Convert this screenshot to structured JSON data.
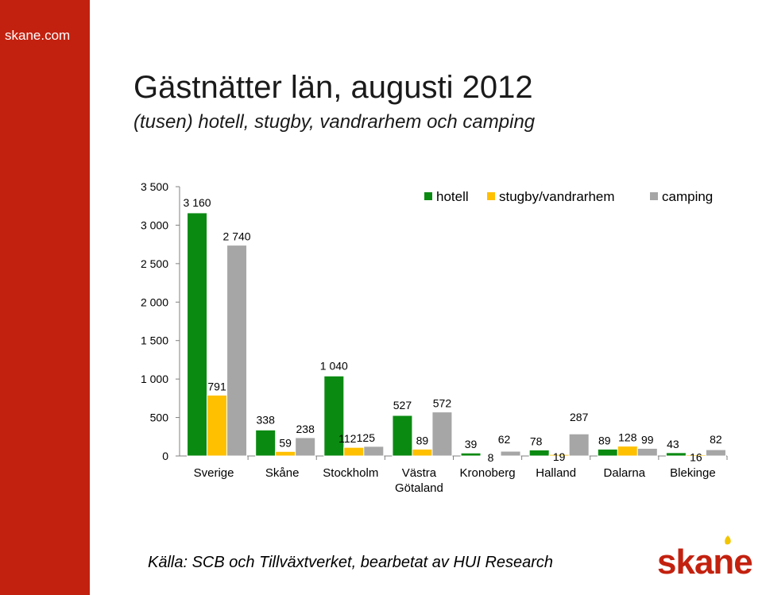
{
  "brand": {
    "site": "skane.com",
    "logo_text": "skane",
    "sidebar_color": "#c3210f",
    "logo_color": "#c3210f",
    "logo_accent": "#f2c500"
  },
  "header": {
    "title": "Gästnätter län, augusti 2012",
    "subtitle": "(tusen) hotell, stugby, vandrarhem och camping"
  },
  "source": "Källa: SCB och Tillväxtverket, bearbetat av HUI Research",
  "chart_data": {
    "type": "bar",
    "title": "",
    "xlabel": "",
    "ylabel": "",
    "ylim": [
      0,
      3500
    ],
    "yticks": [
      0,
      500,
      1000,
      1500,
      2000,
      2500,
      3000,
      3500
    ],
    "ytick_labels": [
      "0",
      "500",
      "1 000",
      "1 500",
      "2 000",
      "2 500",
      "3 000",
      "3 500"
    ],
    "grid": false,
    "legend_position": "top-right",
    "categories": [
      "Sverige",
      "Skåne",
      "Stockholm",
      "Västra Götaland",
      "Kronoberg",
      "Halland",
      "Dalarna",
      "Blekinge"
    ],
    "category_lines": [
      [
        "Sverige"
      ],
      [
        "Skåne"
      ],
      [
        "Stockholm"
      ],
      [
        "Västra",
        "Götaland"
      ],
      [
        "Kronoberg"
      ],
      [
        "Halland"
      ],
      [
        "Dalarna"
      ],
      [
        "Blekinge"
      ]
    ],
    "series": [
      {
        "name": "hotell",
        "color": "#0b8a12",
        "values": [
          3160,
          338,
          1040,
          527,
          39,
          78,
          89,
          43
        ],
        "labels": [
          "3 160",
          "338",
          "1 040",
          "527",
          "39",
          "78",
          "89",
          "43"
        ]
      },
      {
        "name": "stugby/vandrarhem",
        "color": "#ffc000",
        "values": [
          791,
          59,
          112,
          89,
          8,
          19,
          128,
          16
        ],
        "labels": [
          "791",
          "59",
          "112",
          "89",
          "8",
          "19",
          "128",
          "16"
        ]
      },
      {
        "name": "camping",
        "color": "#a6a6a6",
        "values": [
          2740,
          238,
          125,
          572,
          62,
          287,
          99,
          82
        ],
        "labels": [
          "2 740",
          "238",
          "125",
          "572",
          "62",
          "287",
          "99",
          "82"
        ]
      }
    ]
  }
}
